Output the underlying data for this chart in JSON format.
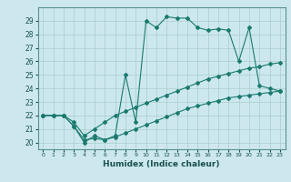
{
  "title": "",
  "xlabel": "Humidex (Indice chaleur)",
  "ylabel": "",
  "bg_color": "#cce8ee",
  "grid_color": "#aacccc",
  "line_color": "#1a7a6e",
  "ylim": [
    19.5,
    30.0
  ],
  "xlim": [
    -0.5,
    23.5
  ],
  "yticks": [
    20,
    21,
    22,
    23,
    24,
    25,
    26,
    27,
    28,
    29
  ],
  "xticks": [
    0,
    1,
    2,
    3,
    4,
    5,
    6,
    7,
    8,
    9,
    10,
    11,
    12,
    13,
    14,
    15,
    16,
    17,
    18,
    19,
    20,
    21,
    22,
    23
  ],
  "series": [
    {
      "x": [
        0,
        1,
        2,
        3,
        4,
        5,
        6,
        7,
        8,
        9,
        10,
        11,
        12,
        13,
        14,
        15,
        16,
        17,
        18,
        19,
        20,
        21,
        22,
        23
      ],
      "y": [
        22,
        22,
        22,
        21.5,
        20.5,
        21.0,
        21.5,
        22.0,
        22.3,
        22.6,
        22.9,
        23.2,
        23.5,
        23.8,
        24.1,
        24.4,
        24.7,
        24.9,
        25.1,
        25.3,
        25.5,
        25.6,
        25.8,
        25.9
      ],
      "marker": "D",
      "markersize": 2,
      "linewidth": 0.8
    },
    {
      "x": [
        0,
        1,
        2,
        3,
        4,
        5,
        6,
        7,
        8,
        9,
        10,
        11,
        12,
        13,
        14,
        15,
        16,
        17,
        18,
        19,
        20,
        21,
        22,
        23
      ],
      "y": [
        22,
        22,
        22,
        21.2,
        20.2,
        20.3,
        20.2,
        20.4,
        20.7,
        21.0,
        21.3,
        21.6,
        21.9,
        22.2,
        22.5,
        22.7,
        22.9,
        23.1,
        23.3,
        23.4,
        23.5,
        23.6,
        23.7,
        23.8
      ],
      "marker": "D",
      "markersize": 2,
      "linewidth": 0.8
    },
    {
      "x": [
        0,
        1,
        2,
        3,
        4,
        5,
        6,
        7,
        8,
        9,
        10,
        11,
        12,
        13,
        14,
        15,
        16,
        17,
        18,
        19,
        20,
        21,
        22,
        23
      ],
      "y": [
        22,
        22,
        22,
        21.2,
        20.0,
        20.5,
        20.2,
        20.5,
        25.0,
        21.5,
        29.0,
        28.5,
        29.3,
        29.2,
        29.2,
        28.5,
        28.3,
        28.4,
        28.3,
        26.0,
        28.5,
        24.2,
        24.0,
        23.8
      ],
      "marker": "D",
      "markersize": 2,
      "linewidth": 0.8
    }
  ]
}
